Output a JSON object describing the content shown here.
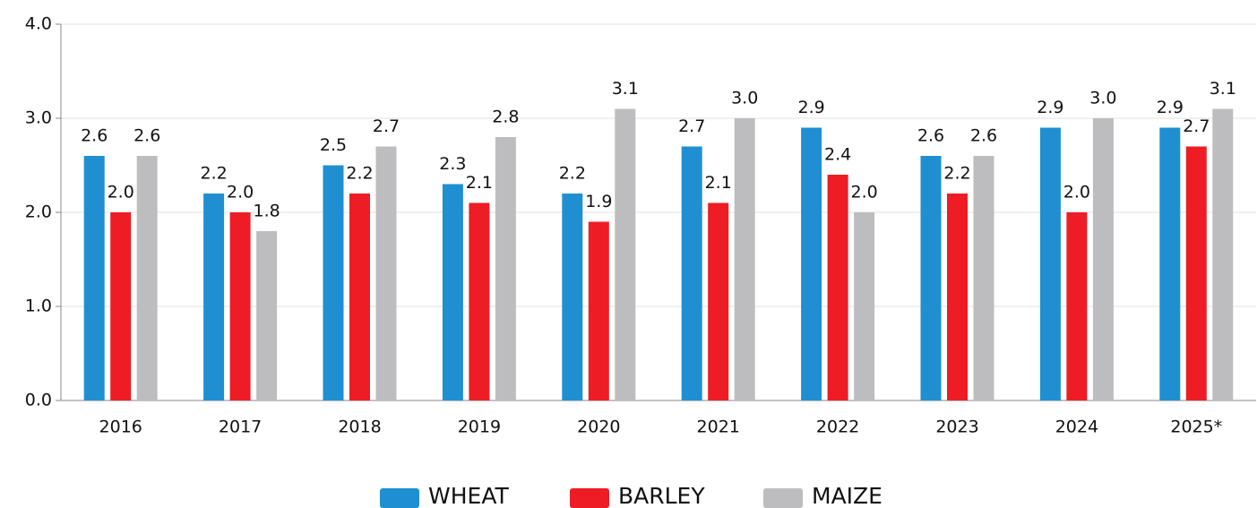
{
  "chart_data": {
    "type": "bar",
    "categories": [
      "2016",
      "2017",
      "2018",
      "2019",
      "2020",
      "2021",
      "2022",
      "2023",
      "2024",
      "2025*"
    ],
    "series": [
      {
        "name": "WHEAT",
        "color": "#1f8fd2",
        "values": [
          2.6,
          2.2,
          2.5,
          2.3,
          2.2,
          2.7,
          2.9,
          2.6,
          2.9,
          2.9
        ],
        "value_labels": [
          "2.6",
          "2.2",
          "2.5",
          "2.3",
          "2.2",
          "2.7",
          "2.9",
          "2.6",
          "2.9",
          "2.9"
        ]
      },
      {
        "name": "BARLEY",
        "color": "#ee1c25",
        "values": [
          2.0,
          2.0,
          2.2,
          2.1,
          1.9,
          2.1,
          2.4,
          2.2,
          2.0,
          2.7
        ],
        "value_labels": [
          "2.0",
          "2.0",
          "2.2",
          "2.1",
          "1.9",
          "2.1",
          "2.4",
          "2.2",
          "2.0",
          "2.7"
        ]
      },
      {
        "name": "MAIZE",
        "color": "#bdbdbf",
        "values": [
          2.6,
          1.8,
          2.7,
          2.8,
          3.1,
          3.0,
          2.0,
          2.6,
          3.0,
          3.1
        ],
        "value_labels": [
          "2.6",
          "1.8",
          "2.7",
          "2.8",
          "3.1",
          "3.0",
          "2.0",
          "2.6",
          "3.0",
          "3.1"
        ]
      }
    ],
    "ylim": [
      0,
      4
    ],
    "yticks": [
      {
        "value": 0,
        "label": "0.0"
      },
      {
        "value": 1,
        "label": "1.0"
      },
      {
        "value": 2,
        "label": "2.0"
      },
      {
        "value": 3,
        "label": "3.0"
      },
      {
        "value": 4,
        "label": "4.0"
      }
    ],
    "grid": true,
    "legend": "bottom"
  }
}
